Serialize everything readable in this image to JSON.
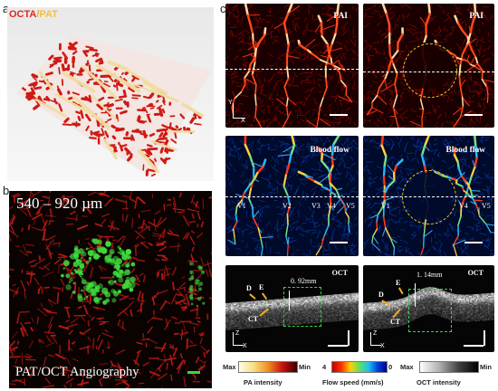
{
  "panel_a": {
    "letter": "a",
    "legend_octa": "OCTA",
    "legend_sep": "/",
    "legend_pat": "PAT",
    "colors": {
      "octa": "#d8231a",
      "pat": "#f0d890"
    }
  },
  "panel_b": {
    "letter": "b",
    "depth": "540 – 920 µm",
    "caption": "PAT/OCT Angiography",
    "colors": {
      "red": "#c8201c",
      "green": "#39d83a"
    }
  },
  "panel_c": {
    "letter": "c",
    "pai_label": "PAI",
    "flow_label": "Blood flow",
    "oct_label": "OCT",
    "axis_y": "Y",
    "axis_x": "X",
    "axis_z": "Z",
    "vessels": [
      "V1",
      "V2",
      "V3",
      "V4",
      "V5"
    ],
    "vessels_right": [
      "V1",
      "V4",
      "V5"
    ],
    "oct_left": {
      "dim": "0. 92mm",
      "labels": [
        "D",
        "E",
        "CT"
      ]
    },
    "oct_right": {
      "dim": "1. 14mm",
      "labels": [
        "E",
        "D",
        "CT"
      ]
    }
  },
  "colorbars": {
    "pa": {
      "left": "Max",
      "right": "Min",
      "title": "PA intensity"
    },
    "flow": {
      "left": "4",
      "right": "0",
      "title": "Flow speed (mm/s)"
    },
    "oct": {
      "left": "Max",
      "right": "Min",
      "title": "OCT intensity"
    }
  }
}
